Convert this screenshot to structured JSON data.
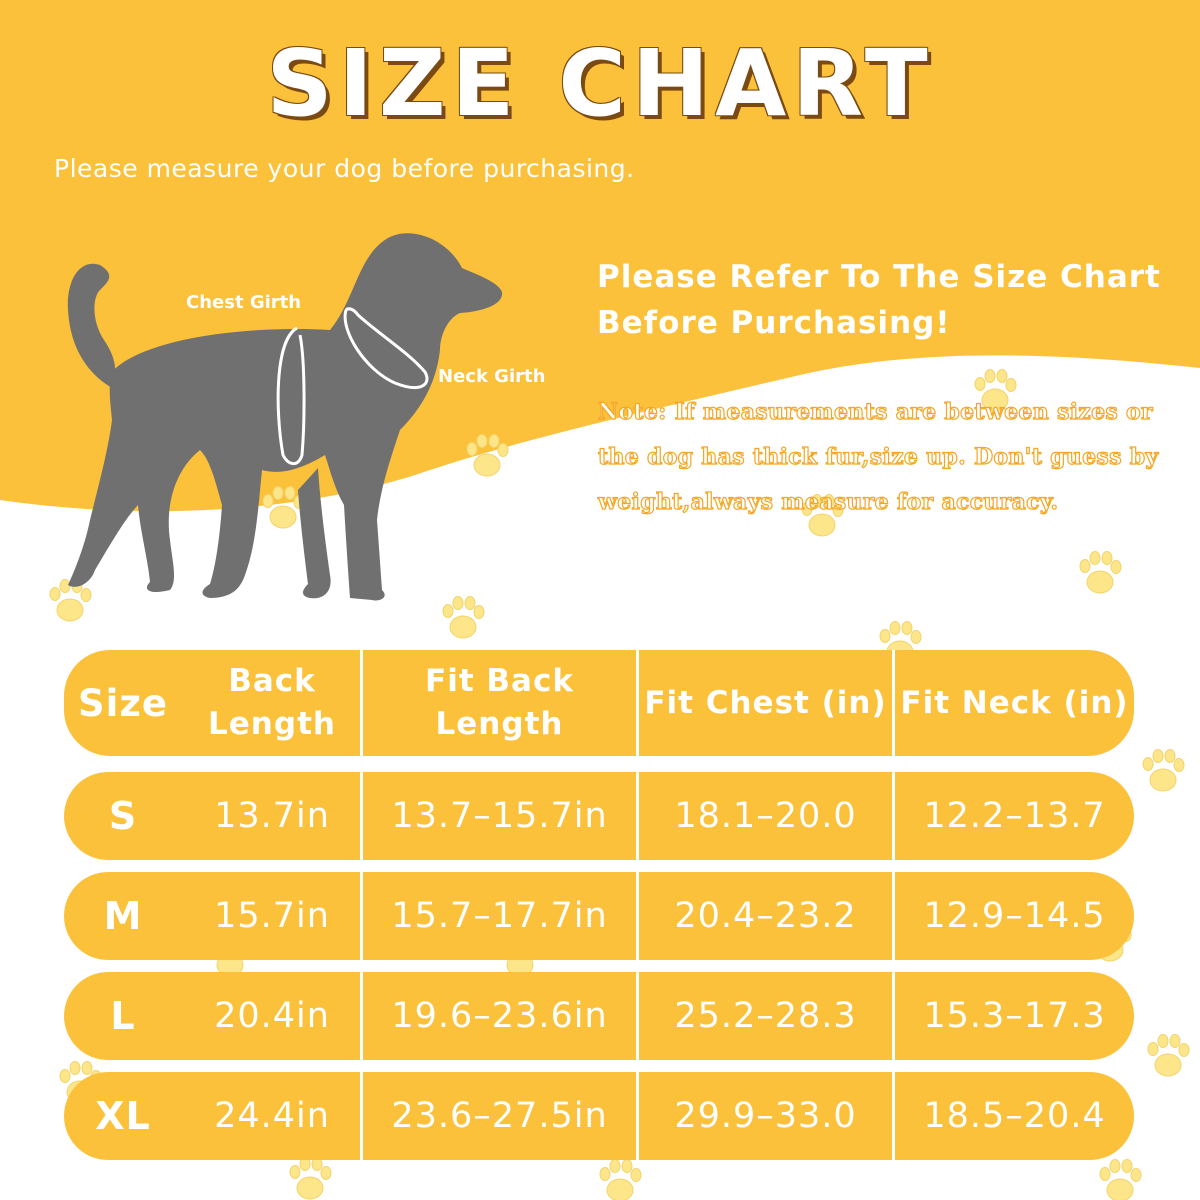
{
  "title": "SIZE CHART",
  "subtitle": "Please measure your dog before purchasing.",
  "heading": "Please Refer To The Size Chart Before Purchasing!",
  "note": "Note: If measurements are between sizes or the dog has thick fur,size up. Don't guess by weight,always measure for accuracy.",
  "diagram": {
    "chest_label": "Chest Girth",
    "neck_label": "Neck Girth"
  },
  "colors": {
    "accent": "#fcc13a",
    "dog": "#707070",
    "paw": "#fde68a"
  },
  "table": {
    "headers": {
      "size": "Size",
      "back_length": "Back Length",
      "fit_back_length": "Fit Back Length",
      "fit_chest": "Fit Chest (in)",
      "fit_neck": "Fit Neck (in)"
    },
    "rows": [
      {
        "size": "S",
        "back_length": "13.7in",
        "fit_back_length": "13.7–15.7in",
        "fit_chest": "18.1–20.0",
        "fit_neck": "12.2–13.7"
      },
      {
        "size": "M",
        "back_length": "15.7in",
        "fit_back_length": "15.7–17.7in",
        "fit_chest": "20.4–23.2",
        "fit_neck": "12.9–14.5"
      },
      {
        "size": "L",
        "back_length": "20.4in",
        "fit_back_length": "19.6–23.6in",
        "fit_chest": "25.2–28.3",
        "fit_neck": "15.3–17.3"
      },
      {
        "size": "XL",
        "back_length": "24.4in",
        "fit_back_length": "23.6–27.5in",
        "fit_chest": "29.9–33.0",
        "fit_neck": "18.5–20.4"
      }
    ]
  }
}
